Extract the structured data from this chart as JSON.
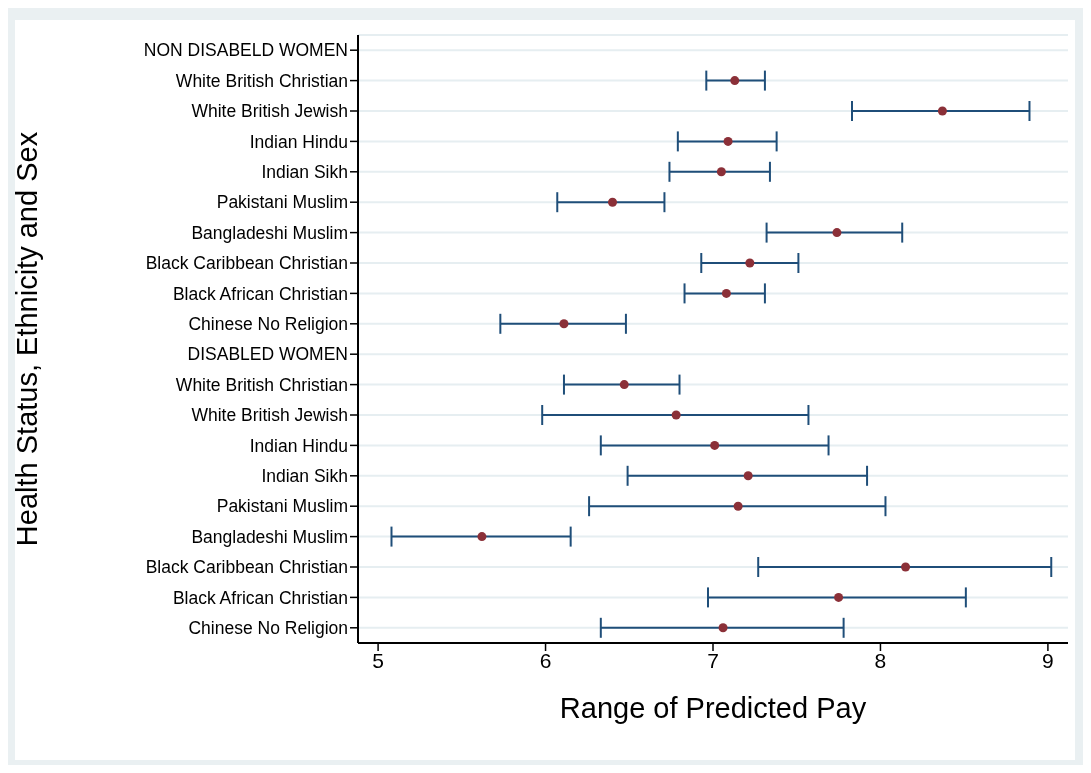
{
  "chart_data": {
    "type": "scatter",
    "orientation": "horizontal",
    "xlabel": "Range of Predicted Pay",
    "ylabel": "Health Status, Ethnicity and Sex",
    "categories": [
      "NON DISABELD WOMEN",
      "White British Christian",
      "White British Jewish",
      "Indian Hindu",
      "Indian Sikh",
      "Pakistani Muslim",
      "Bangladeshi Muslim",
      "Black Caribbean Christian",
      "Black African Christian",
      "Chinese No Religion",
      "DISABLED WOMEN",
      "White British Christian",
      "White British Jewish",
      "Indian Hindu",
      "Indian Sikh",
      "Pakistani Muslim",
      "Bangladeshi Muslim",
      "Black Caribbean Christian",
      "Black African Christian",
      "Chinese No Religion"
    ],
    "series": [
      {
        "color": "#8b3038",
        "values": [
          null,
          7.13,
          8.37,
          7.09,
          7.05,
          6.4,
          7.74,
          7.22,
          7.08,
          6.11,
          null,
          6.47,
          6.78,
          7.01,
          7.21,
          7.15,
          5.62,
          8.15,
          7.75,
          7.06
        ],
        "errors": [
          null,
          [
            6.96,
            7.31
          ],
          [
            7.83,
            8.89
          ],
          [
            6.79,
            7.38
          ],
          [
            6.74,
            7.34
          ],
          [
            6.07,
            6.71
          ],
          [
            7.32,
            8.13
          ],
          [
            6.93,
            7.51
          ],
          [
            6.83,
            7.31
          ],
          [
            5.73,
            6.48
          ],
          null,
          [
            6.11,
            6.8
          ],
          [
            5.98,
            7.57
          ],
          [
            6.33,
            7.69
          ],
          [
            6.49,
            7.92
          ],
          [
            6.26,
            8.03
          ],
          [
            5.08,
            6.15
          ],
          [
            7.27,
            9.02
          ],
          [
            6.97,
            8.51
          ],
          [
            6.33,
            7.78
          ]
        ]
      }
    ],
    "xlim": [
      4.88,
      9.12
    ],
    "xticks": [
      5,
      6,
      7,
      8,
      9
    ],
    "grid": "y",
    "legend": false,
    "marker": "circle"
  }
}
